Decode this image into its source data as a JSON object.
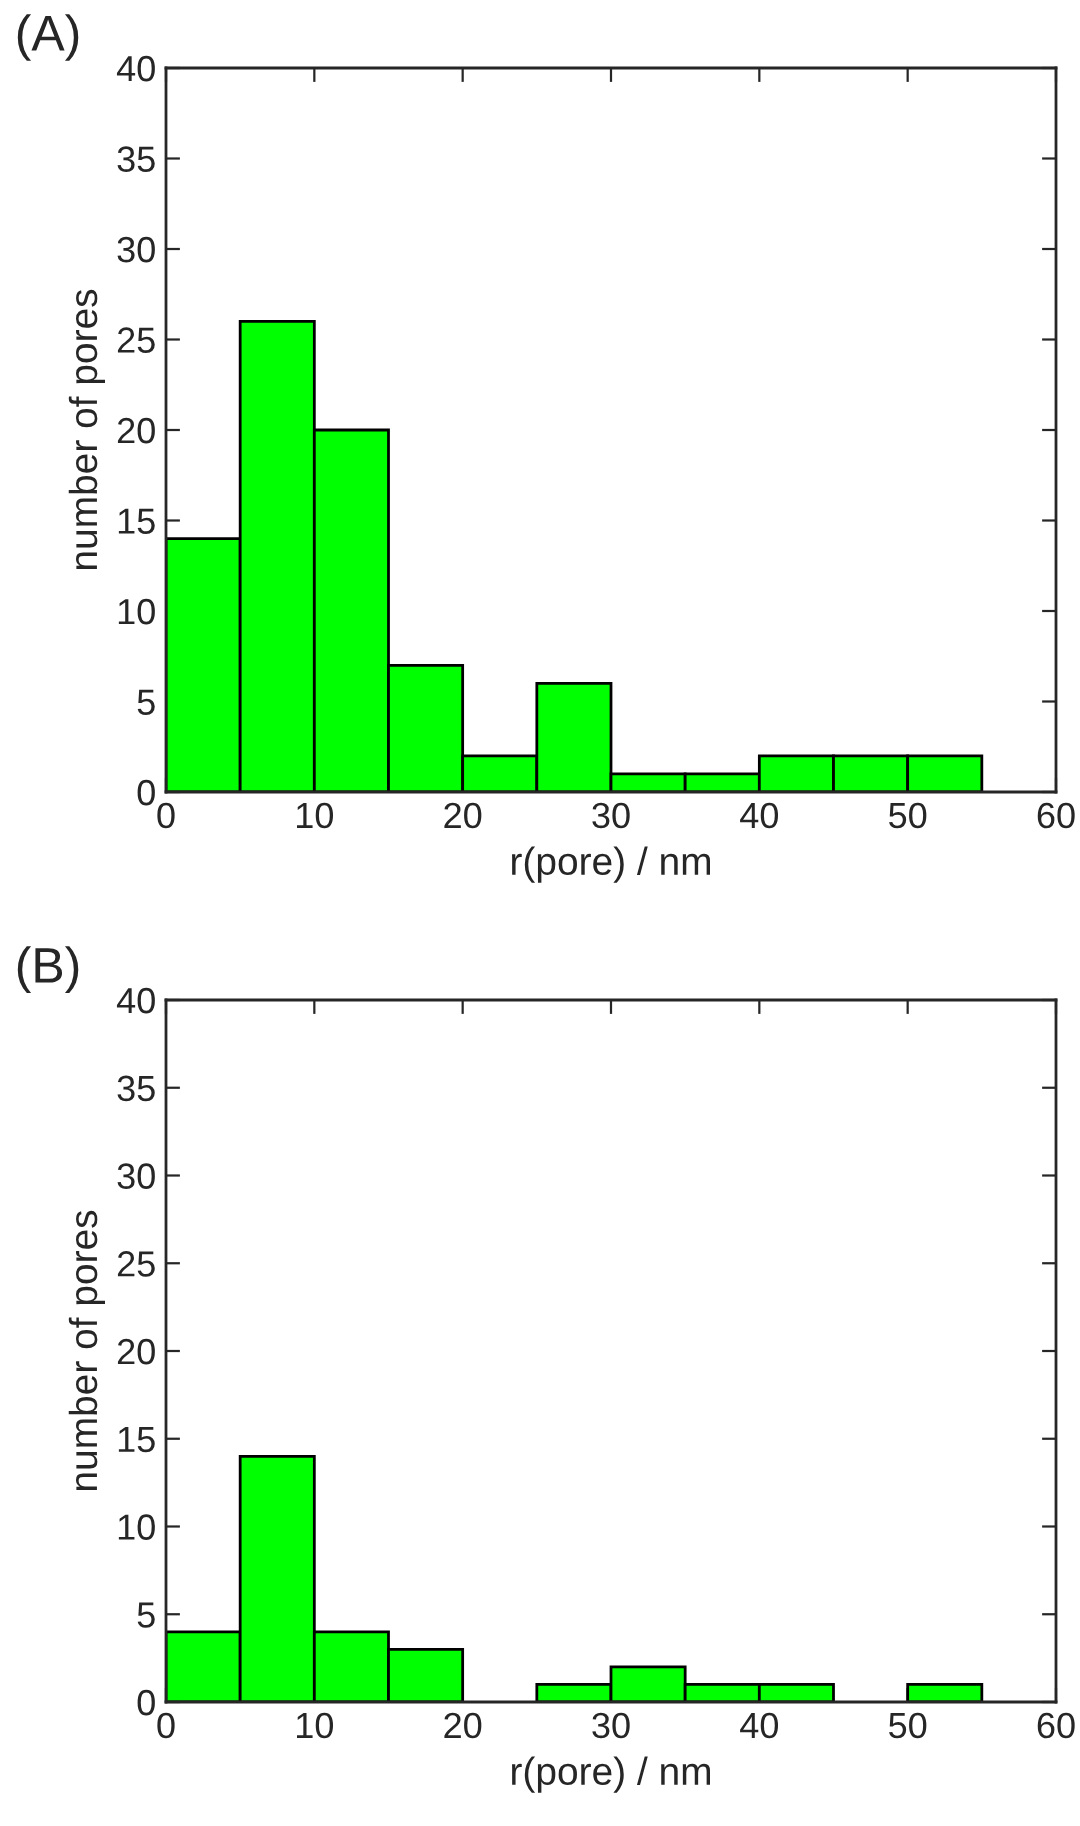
{
  "chart_data": [
    {
      "type": "histogram",
      "title": "(A)",
      "xlabel": "r(pore) / nm",
      "ylabel": "number of pores",
      "color": "#00ff00",
      "bins": [
        0,
        5,
        10,
        15,
        20,
        25,
        30,
        35,
        40,
        45,
        50,
        55,
        60
      ],
      "values": [
        14,
        26,
        20,
        7,
        2,
        6,
        1,
        1,
        2,
        2,
        2,
        0
      ],
      "xlim": [
        0,
        60
      ],
      "xticks": [
        0,
        10,
        20,
        30,
        40,
        50,
        60
      ],
      "ylim": [
        0,
        40
      ],
      "yticks": [
        0,
        5,
        10,
        15,
        20,
        25,
        30,
        35,
        40
      ],
      "grid": false
    },
    {
      "type": "histogram",
      "title": "(B)",
      "xlabel": "r(pore) / nm",
      "ylabel": "number of pores",
      "color": "#00ff00",
      "bins": [
        0,
        5,
        10,
        15,
        20,
        25,
        30,
        35,
        40,
        45,
        50,
        55,
        60
      ],
      "values": [
        4,
        14,
        4,
        3,
        0,
        1,
        2,
        1,
        1,
        0,
        1,
        0
      ],
      "xlim": [
        0,
        60
      ],
      "xticks": [
        0,
        10,
        20,
        30,
        40,
        50,
        60
      ],
      "ylim": [
        0,
        40
      ],
      "yticks": [
        0,
        5,
        10,
        15,
        20,
        25,
        30,
        35,
        40
      ],
      "grid": false
    }
  ]
}
